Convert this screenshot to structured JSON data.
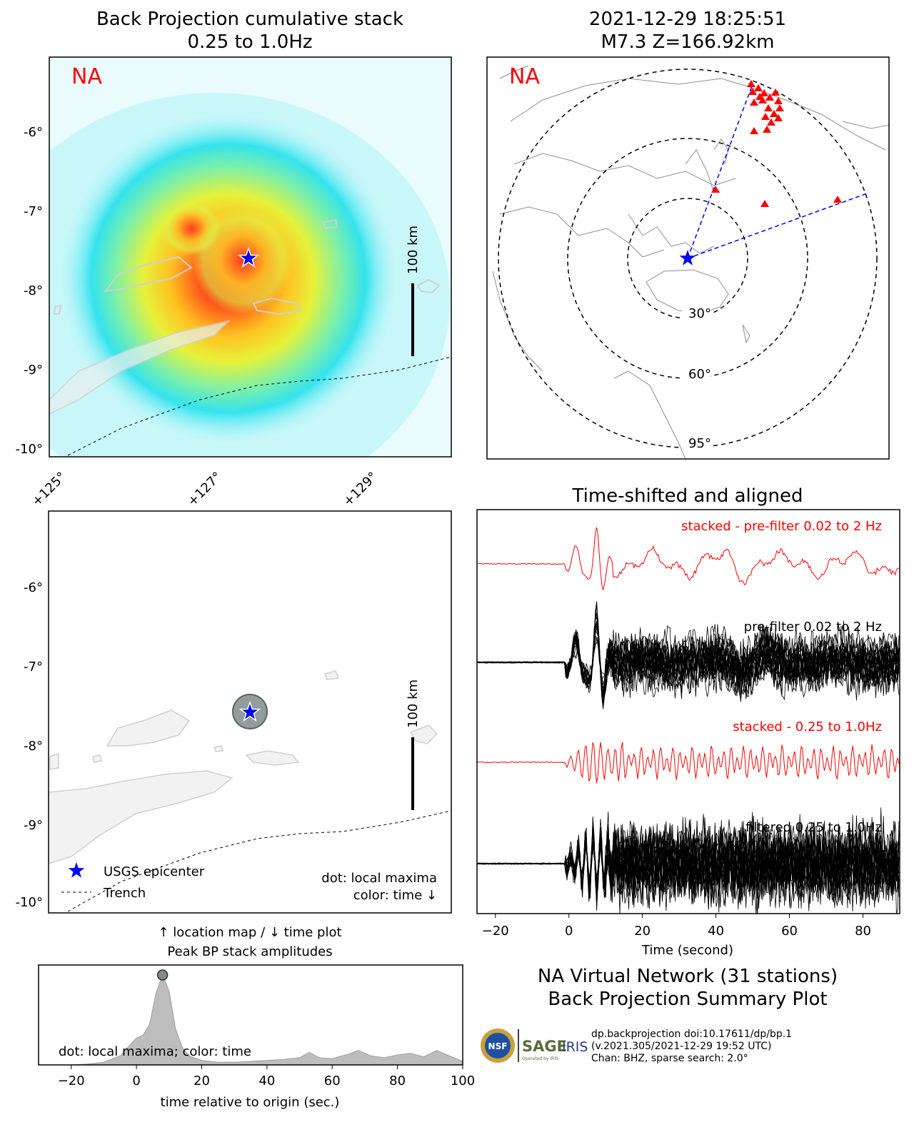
{
  "bp_map": {
    "title_line1": "Back Projection cumulative stack",
    "title_line2": "0.25 to 1.0Hz",
    "network_label": "NA",
    "scale_label": "100 km",
    "lat_ticks": [
      "-6°",
      "-7°",
      "-8°",
      "-9°",
      "-10°"
    ],
    "lon_ticks": [
      "+125°",
      "+127°",
      "+129°"
    ]
  },
  "station_map": {
    "title_line1": "2021-12-29 18:25:51",
    "title_line2": "M7.3 Z=166.92km",
    "network_label": "NA",
    "ring_labels": [
      "30°",
      "60°",
      "95°"
    ]
  },
  "location_map": {
    "scale_label": "100 km",
    "lat_ticks": [
      "-6°",
      "-7°",
      "-8°",
      "-9°",
      "-10°"
    ],
    "legend": {
      "epicenter": "USGS epicenter",
      "trench": "Trench"
    },
    "note_line1": "dot: local maxima",
    "note_line2": "color: time ↓",
    "caption_line1": "↑ location map / ↓ time plot",
    "caption_line2": "Peak BP stack amplitudes"
  },
  "peak_plot": {
    "note": "dot: local maxima; color: time",
    "xlabel": "time relative to origin (sec.)",
    "xticks": [
      "−20",
      "0",
      "20",
      "40",
      "60",
      "80",
      "100"
    ]
  },
  "seismograms": {
    "title": "Time-shifted and aligned",
    "trace1_label": "stacked - pre-filter 0.02 to 2 Hz",
    "trace2_label": "pre-filter 0.02 to 2 Hz",
    "trace3_label": "stacked - 0.25 to 1.0Hz",
    "trace4_label": "filtered 0.25 to 1.0Hz",
    "xlabel": "Time (second)",
    "xticks": [
      "−20",
      "0",
      "20",
      "40",
      "60",
      "80"
    ]
  },
  "summary": {
    "line1": "NA Virtual Network (31 stations)",
    "line2": "Back Projection Summary Plot",
    "meta1": "dp.backprojection doi:10.17611/dp/bp.1",
    "meta2": "(v.2021.305/2021-12-29 19:52 UTC)",
    "meta3": "Chan: BHZ, sparse search: 2.0°",
    "logo_nsf": "NSF",
    "logo_sage": "SAGE",
    "logo_sage_sub": "Operated by IRIS",
    "logo_iris": "IRIS"
  },
  "colors": {
    "red": "#ff0000",
    "blue": "#0000ff",
    "black": "#000000",
    "fill": "#bdbdbd"
  },
  "chart_data": [
    {
      "type": "line",
      "title": "Peak BP stack amplitudes",
      "xlabel": "time relative to origin (sec.)",
      "xlim": [
        -30,
        100
      ],
      "peak": {
        "x": 8,
        "y": 1.0
      },
      "x": [
        -20,
        -15,
        -10,
        -5,
        -2,
        0,
        2,
        4,
        6,
        8,
        10,
        12,
        14,
        16,
        20,
        25,
        30,
        35,
        40,
        45,
        50,
        53,
        56,
        60,
        65,
        68,
        72,
        76,
        80,
        84,
        88,
        92,
        96,
        100
      ],
      "y": [
        0.0,
        0.01,
        0.03,
        0.1,
        0.22,
        0.3,
        0.33,
        0.45,
        0.8,
        1.0,
        0.82,
        0.4,
        0.2,
        0.1,
        0.05,
        0.03,
        0.03,
        0.04,
        0.05,
        0.06,
        0.08,
        0.14,
        0.08,
        0.07,
        0.12,
        0.16,
        0.1,
        0.08,
        0.11,
        0.13,
        0.09,
        0.16,
        0.1,
        0.04
      ]
    },
    {
      "type": "line",
      "title": "Time-shifted and aligned",
      "xlabel": "Time (second)",
      "xlim": [
        -25,
        90
      ],
      "series": [
        {
          "name": "stacked - pre-filter 0.02 to 2 Hz",
          "color": "#ff0000"
        },
        {
          "name": "pre-filter 0.02 to 2 Hz",
          "color": "#000000",
          "trace_count": 31
        },
        {
          "name": "stacked - 0.25 to 1.0Hz",
          "color": "#ff0000"
        },
        {
          "name": "filtered 0.25 to 1.0Hz",
          "color": "#000000",
          "trace_count": 31
        }
      ],
      "arrivals": {
        "first_motion_sec": 0,
        "main_pulses_sec": [
          2,
          8
        ]
      }
    }
  ]
}
